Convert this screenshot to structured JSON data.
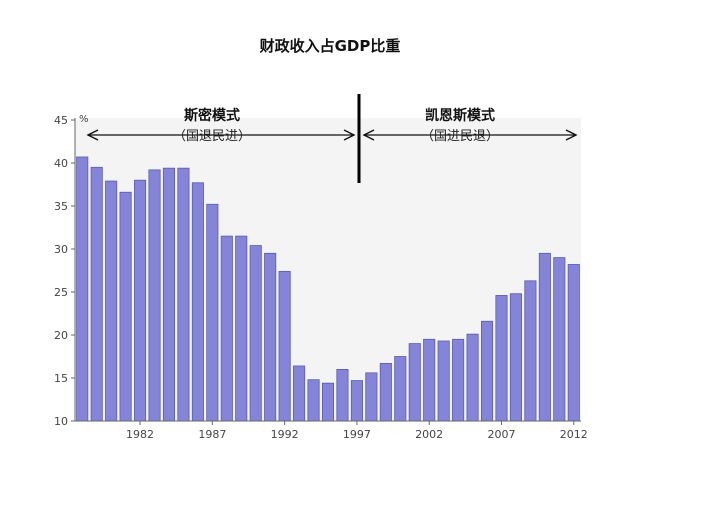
{
  "chart_data": {
    "type": "bar",
    "title": "财政收入占GDP比重",
    "unit_label": "%",
    "xlabel": "",
    "ylabel": "",
    "ylim": [
      10,
      45
    ],
    "yticks": [
      10,
      15,
      20,
      25,
      30,
      35,
      40,
      45
    ],
    "xtick_labels": [
      "1982",
      "1987",
      "1992",
      "1997",
      "2002",
      "2007",
      "2012"
    ],
    "categories": [
      1978,
      1979,
      1980,
      1981,
      1982,
      1983,
      1984,
      1985,
      1986,
      1987,
      1988,
      1989,
      1990,
      1991,
      1992,
      1993,
      1994,
      1995,
      1996,
      1997,
      1998,
      1999,
      2000,
      2001,
      2002,
      2003,
      2004,
      2005,
      2006,
      2007,
      2008,
      2009,
      2010,
      2011,
      2012
    ],
    "values": [
      40.7,
      39.5,
      37.9,
      36.6,
      38.0,
      39.2,
      39.4,
      39.4,
      37.7,
      35.2,
      31.5,
      31.5,
      30.4,
      29.5,
      27.4,
      16.4,
      14.8,
      14.4,
      16.0,
      14.7,
      15.6,
      16.7,
      17.5,
      19.0,
      19.5,
      19.3,
      19.5,
      20.1,
      21.6,
      24.6,
      24.8,
      26.3,
      29.5,
      29.0,
      28.2
    ],
    "bar_color": "#8484d8",
    "annotations": [
      {
        "label": "斯密模式",
        "sublabel": "（国退民进）"
      },
      {
        "label": "凯恩斯模式",
        "sublabel": "（国进民退）"
      }
    ]
  }
}
